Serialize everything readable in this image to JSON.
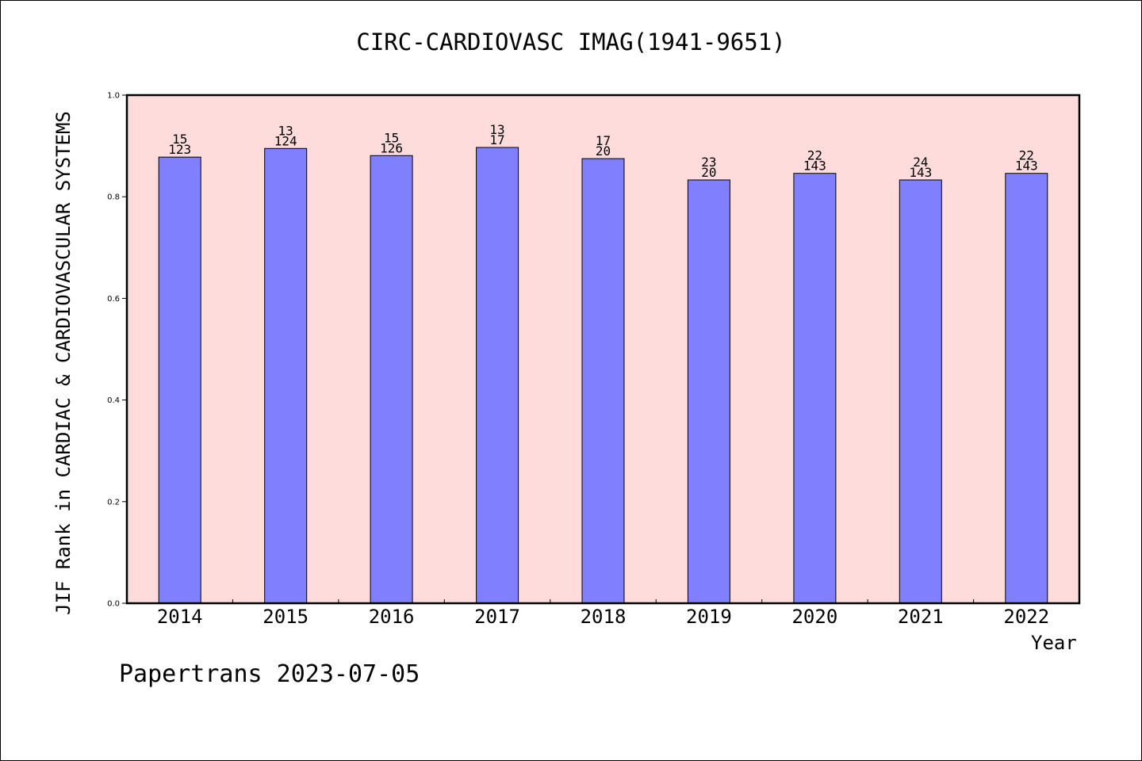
{
  "chart_data": {
    "type": "bar",
    "title": "CIRC-CARDIOVASC IMAG(1941-9651)",
    "xlabel": "Year",
    "ylabel": "JIF Rank in CARDIAC & CARDIOVASCULAR SYSTEMS",
    "categories": [
      "2014",
      "2015",
      "2016",
      "2017",
      "2018",
      "2019",
      "2020",
      "2021",
      "2022"
    ],
    "values": [
      0.878,
      0.895,
      0.881,
      0.897,
      0.875,
      0.833,
      0.846,
      0.833,
      0.846
    ],
    "bar_labels_top": [
      "15",
      "13",
      "15",
      "13",
      "17",
      "23",
      "22",
      "24",
      "22"
    ],
    "bar_labels_bottom": [
      "123",
      "124",
      "126",
      "17",
      "20",
      "20",
      "143",
      "143",
      "143"
    ],
    "ylim": [
      0,
      1.0
    ],
    "yticks": [
      "0.0",
      "0.2",
      "0.4",
      "0.6",
      "0.8",
      "1.0"
    ],
    "grid": false,
    "colors": {
      "plot_background": "#FFDCDC",
      "bar_fill": "#8080FF",
      "bar_edge": "#000000"
    }
  },
  "footer": "Papertrans 2023-07-05"
}
